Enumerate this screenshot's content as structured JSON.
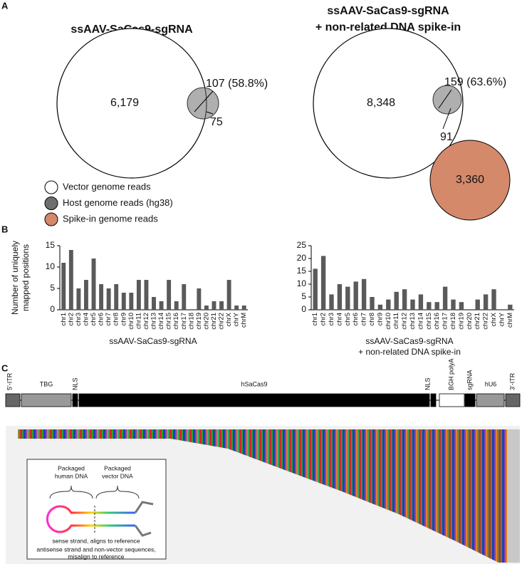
{
  "panel_labels": [
    "A",
    "B",
    "C"
  ],
  "venn": [
    {
      "title": [
        "ssAAV-SaCas9-sgRNA"
      ],
      "vector": "6,179",
      "overlap": "107 (58.8%)",
      "host_only": "75"
    },
    {
      "title": [
        "ssAAV-SaCas9-sgRNA",
        "+ non-related DNA spike-in"
      ],
      "vector": "8,348",
      "overlap": "159 (63.6%)",
      "host_only": "91",
      "spike_in": "3,360"
    }
  ],
  "legend": [
    {
      "label": "Vector genome reads",
      "color": "#ffffff"
    },
    {
      "label": "Host genome reads (hg38)",
      "color": "#6e6e6e"
    },
    {
      "label": "Spike-in genome reads",
      "color": "#d4896b"
    }
  ],
  "chart_data": [
    {
      "type": "bar",
      "y_label": [
        "Number of uniquely",
        "mapped positions"
      ],
      "x_label": [
        "ssAAV-SaCas9-sgRNA"
      ],
      "categories": [
        "chr1",
        "chr2",
        "chr3",
        "chr4",
        "chr5",
        "chr6",
        "chr7",
        "chr8",
        "chr9",
        "chr10",
        "chr11",
        "chr12",
        "chr13",
        "chr14",
        "chr15",
        "chr16",
        "chr17",
        "chr18",
        "chr19",
        "chr20",
        "chr21",
        "chr22",
        "chrX",
        "chrY",
        "chrM"
      ],
      "values": [
        11,
        14,
        5,
        7,
        12,
        6,
        5,
        6,
        4,
        4,
        7,
        7,
        3,
        2,
        7,
        2,
        6,
        0,
        5,
        1,
        2,
        2,
        7,
        1,
        1
      ],
      "color": "#5a5a5a",
      "ylim": [
        0,
        15
      ],
      "yticks": [
        0,
        5,
        10,
        15
      ]
    },
    {
      "type": "bar",
      "x_label": [
        "ssAAV-SaCas9-sgRNA",
        "+ non-related DNA spike-in"
      ],
      "categories": [
        "chr1",
        "chr2",
        "chr3",
        "chr4",
        "chr5",
        "chr6",
        "chr7",
        "chr8",
        "chr9",
        "chr10",
        "chr11",
        "chr12",
        "chr13",
        "chr14",
        "chr15",
        "chr16",
        "chr17",
        "chr18",
        "chr19",
        "chr20",
        "chr21",
        "chr22",
        "chrX",
        "chrY",
        "chrM"
      ],
      "values": [
        16,
        21,
        6,
        10,
        9,
        11,
        12,
        5,
        2,
        4,
        7,
        8,
        4,
        6,
        3,
        3,
        9,
        4,
        3,
        0,
        4,
        6,
        8,
        0,
        2
      ],
      "color": "#5a5a5a",
      "ylim": [
        0,
        25
      ],
      "yticks": [
        0,
        5,
        10,
        15,
        20,
        25
      ]
    }
  ],
  "genome_map": [
    "5'-ITR",
    "TBG",
    "NLS",
    "hSaCas9",
    "NLS",
    "BGH polyA",
    "sgRNA",
    "hU6",
    "3'-ITR"
  ],
  "inset": {
    "human": [
      "Packaged",
      "human DNA"
    ],
    "vector": [
      "Packaged",
      "vector DNA"
    ],
    "sense": "sense strand, aligns to reference",
    "antisense": [
      "antisense strand and non-vector sequences,",
      "misalign to reference"
    ]
  }
}
